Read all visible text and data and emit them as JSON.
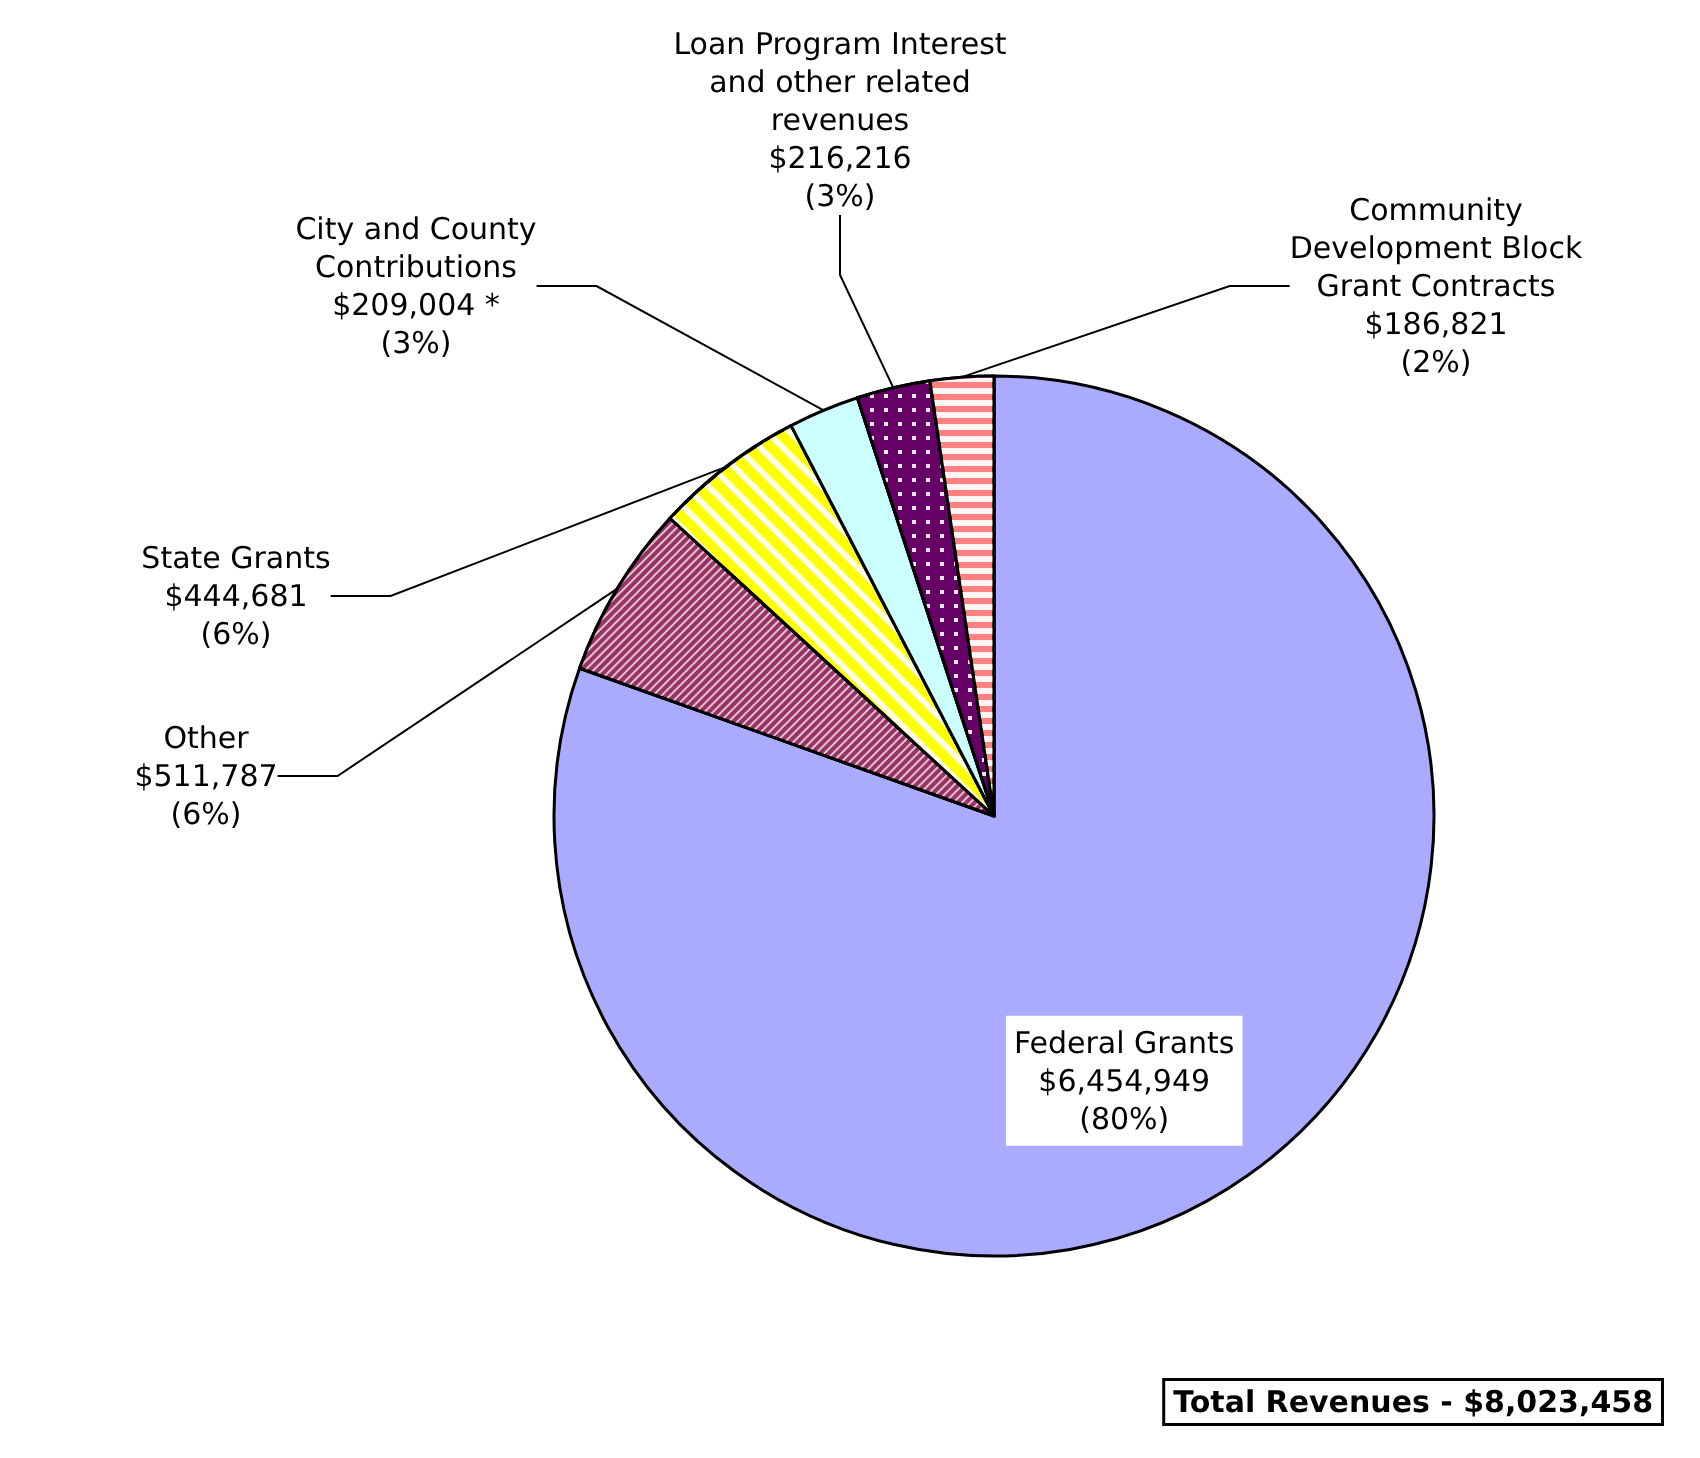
{
  "chart_data": {
    "type": "pie",
    "categories": [
      "Federal Grants",
      "Other",
      "State Grants",
      "City and County\nContributions",
      "Loan Program Interest\nand other related\nrevenues",
      "Community\nDevelopment Block\nGrant Contracts"
    ],
    "values": [
      6454949,
      511787,
      444681,
      209004,
      216216,
      186821
    ],
    "value_labels": [
      "$6,454,949\n(80%)",
      "$511,787\n(6%)",
      "$444,681\n(6%)",
      "$209,004 *\n(3%)",
      "$216,216\n(3%)",
      "$186,821\n(2%)"
    ],
    "colors": [
      "#aaaaff",
      "#993366",
      "#ffff00",
      "#ccffff",
      "#660066",
      "#ff8080"
    ],
    "legend": false,
    "annotations": [
      "Total Revenues - $8,023,458"
    ]
  }
}
